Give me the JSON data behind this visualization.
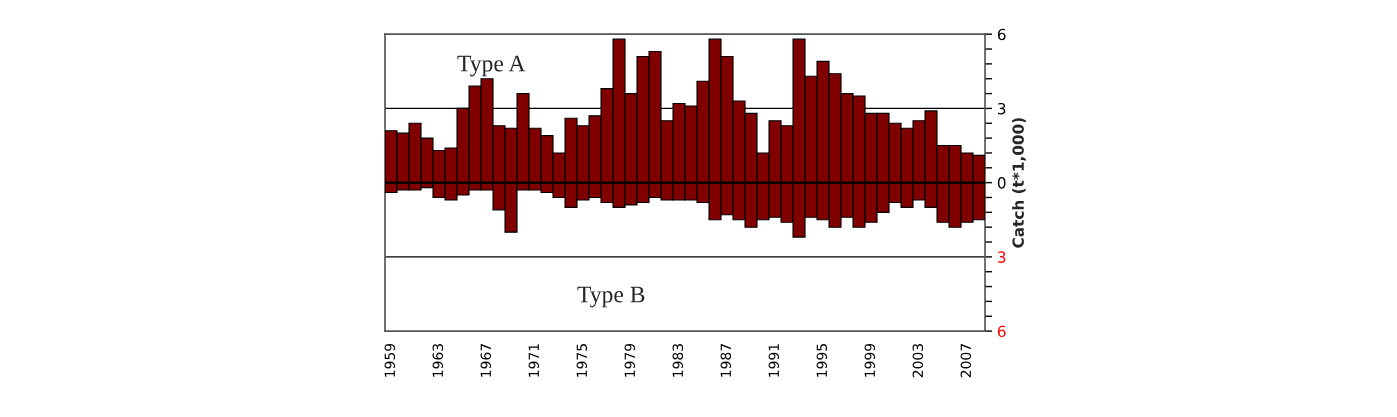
{
  "chart_data": {
    "type": "bar",
    "ylabel": "Catch (t*1,000)",
    "categories": [
      "1959",
      null,
      null,
      null,
      "1963",
      null,
      null,
      null,
      "1967",
      null,
      null,
      null,
      "1971",
      null,
      null,
      null,
      "1975",
      null,
      null,
      null,
      "1979",
      null,
      null,
      null,
      "1983",
      null,
      null,
      null,
      "1987",
      null,
      null,
      null,
      "1991",
      null,
      null,
      null,
      "1995",
      null,
      null,
      null,
      "1999",
      null,
      null,
      null,
      "2003",
      null,
      null,
      null,
      "2007",
      null
    ],
    "series": [
      {
        "color": "#800000",
        "values": [
          2.1,
          2.0,
          2.4,
          1.8,
          1.3,
          1.4,
          3.0,
          3.9,
          4.2,
          2.3,
          2.2,
          3.6,
          2.2,
          1.9,
          1.2,
          2.6,
          2.3,
          2.7,
          3.8,
          5.8,
          3.6,
          5.1,
          5.3,
          2.5,
          3.2,
          3.1,
          4.1,
          5.8,
          5.1,
          3.3,
          2.8,
          1.2,
          2.5,
          2.3,
          5.8,
          4.3,
          4.9,
          4.4,
          3.6,
          3.5,
          2.8,
          2.8,
          2.4,
          2.2,
          2.5,
          2.9,
          1.5,
          1.5,
          1.2,
          1.1
        ]
      },
      {
        "color": "#800000",
        "values": [
          -0.4,
          -0.3,
          -0.3,
          -0.2,
          -0.6,
          -0.7,
          -0.5,
          -0.3,
          -0.3,
          -1.1,
          -2.0,
          -0.3,
          -0.3,
          -0.4,
          -0.6,
          -1.0,
          -0.7,
          -0.6,
          -0.8,
          -1.0,
          -0.9,
          -0.8,
          -0.6,
          -0.7,
          -0.7,
          -0.7,
          -0.8,
          -1.5,
          -1.3,
          -1.5,
          -1.8,
          -1.5,
          -1.4,
          -1.6,
          -2.2,
          -1.4,
          -1.5,
          -1.8,
          -1.4,
          -1.8,
          -1.6,
          -1.2,
          -0.8,
          -1.0,
          -0.7,
          -1.0,
          -1.6,
          -1.8,
          -1.6,
          -1.5
        ]
      }
    ],
    "ylim": [
      -6,
      6
    ],
    "yticks": [
      {
        "value": -6,
        "label": "6"
      },
      {
        "value": -5.4,
        "label": null
      },
      {
        "value": -4.8,
        "label": null
      },
      {
        "value": -4.2,
        "label": null
      },
      {
        "value": -3.6,
        "label": null
      },
      {
        "value": -3,
        "label": "3"
      },
      {
        "value": -2.4,
        "label": null
      },
      {
        "value": -1.8,
        "label": null
      },
      {
        "value": -1.2,
        "label": null
      },
      {
        "value": -0.6,
        "label": null
      },
      0,
      {
        "value": 0.6,
        "label": null
      },
      {
        "value": 1.2,
        "label": null
      },
      {
        "value": 1.8,
        "label": null
      },
      {
        "value": 2.4,
        "label": null
      },
      3,
      {
        "value": 3.6,
        "label": null
      },
      {
        "value": 4.2,
        "label": null
      },
      {
        "value": 4.8,
        "label": null
      },
      {
        "value": 5.4,
        "label": null
      },
      6
    ],
    "ref_lines": [
      {
        "axis": "y",
        "value": 3,
        "color": "#000000"
      },
      {
        "axis": "y",
        "value": -3,
        "color": "#000000"
      }
    ],
    "annotations": [
      "Type A",
      "Type B"
    ],
    "stacked": true,
    "legend": false,
    "grid": false
  }
}
